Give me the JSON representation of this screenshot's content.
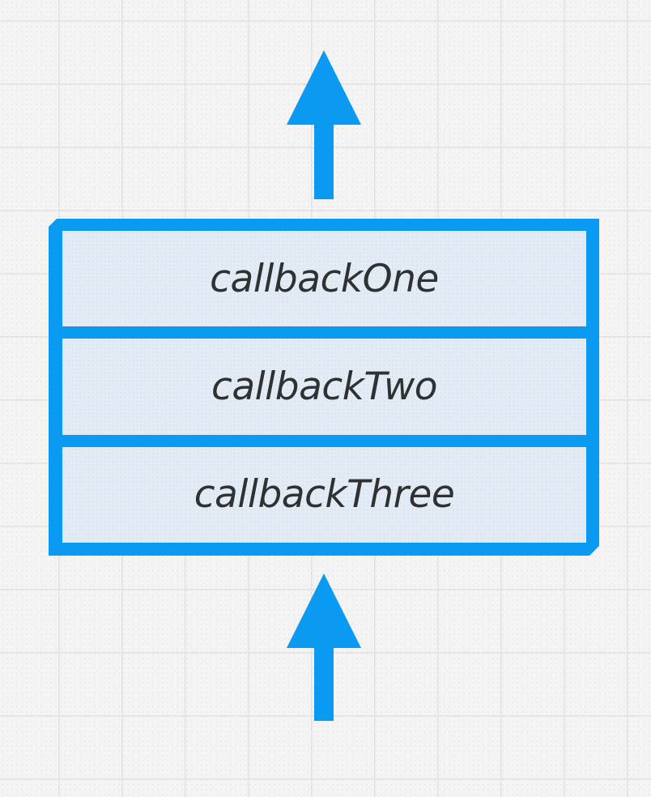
{
  "colors": {
    "accent": "#0b9af2",
    "frame_fill": "#e3ecf5",
    "text": "#2f3133",
    "background": "#f4f4f4"
  },
  "arrows": {
    "top": {
      "icon": "arrow-up-icon"
    },
    "bottom": {
      "icon": "arrow-up-icon"
    }
  },
  "stack": {
    "frames": [
      {
        "label": "callbackOne"
      },
      {
        "label": "callbackTwo"
      },
      {
        "label": "callbackThree"
      }
    ]
  }
}
